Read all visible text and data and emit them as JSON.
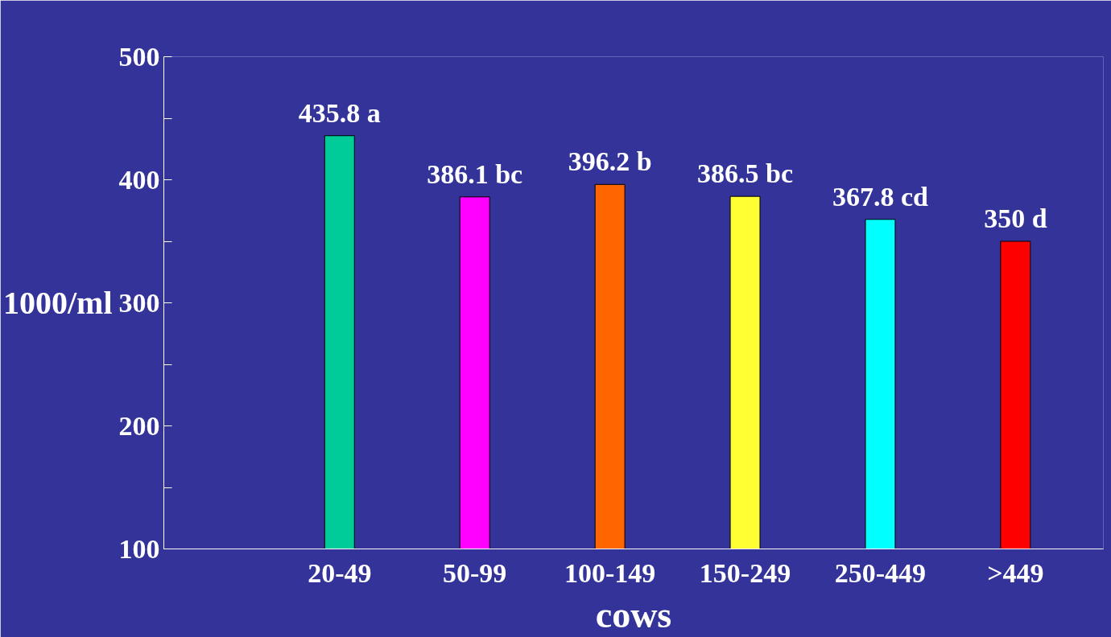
{
  "chart_data": {
    "type": "bar",
    "xlabel": "cows",
    "ylabel": "1000/ml",
    "categories": [
      "20-49",
      "50-99",
      "100-149",
      "150-249",
      "250-449",
      ">449"
    ],
    "values": [
      435.8,
      386.1,
      396.2,
      386.5,
      367.8,
      350
    ],
    "colors": [
      "#00cc99",
      "#ff00ff",
      "#ff6600",
      "#ffff33",
      "#00ffff",
      "#ff0000"
    ],
    "value_labels": [
      "435.8 a",
      "386.1 bc",
      "396.2 b",
      "386.5 bc",
      "367.8 cd",
      "350 d"
    ],
    "ylim": [
      100,
      500
    ],
    "yticks": [
      100,
      {
        "value": 150,
        "label": null
      },
      200,
      {
        "value": 250,
        "label": null
      },
      300,
      {
        "value": 350,
        "label": null
      },
      400,
      {
        "value": 450,
        "label": null
      },
      500
    ],
    "grid": false
  }
}
